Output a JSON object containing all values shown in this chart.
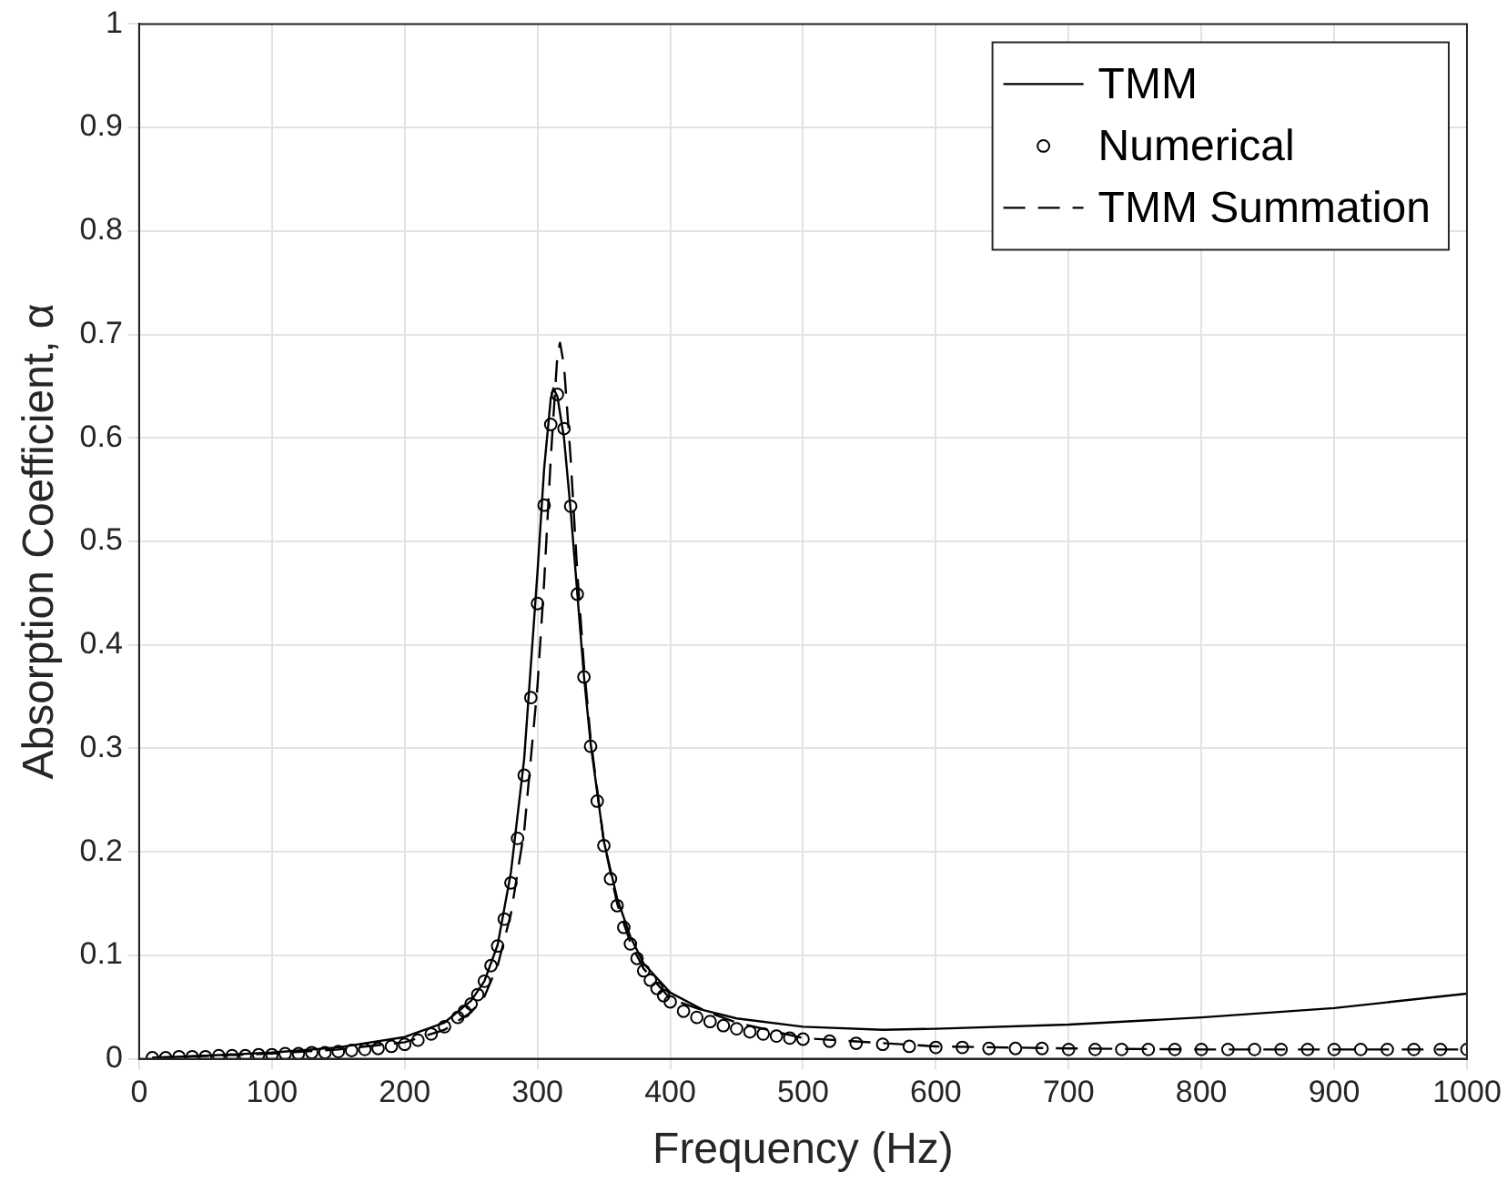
{
  "chart_data": {
    "type": "line",
    "xlabel": "Frequency (Hz)",
    "ylabel": "Absorption Coefficient, α",
    "xlim": [
      0,
      1000
    ],
    "xticks": [
      0,
      100,
      200,
      300,
      400,
      500,
      600,
      700,
      800,
      900,
      1000
    ],
    "ylim": [
      0,
      1
    ],
    "yticks": [
      0,
      0.1,
      0.2,
      0.3,
      0.4,
      0.5,
      0.6,
      0.7,
      0.8,
      0.9,
      1
    ],
    "grid": true,
    "legend": "top right",
    "series": [
      {
        "name": "TMM",
        "type": "line",
        "color": "#000000",
        "line_style": "solid",
        "marker": "none",
        "x": [
          10,
          50,
          100,
          150,
          200,
          230,
          250,
          260,
          270,
          280,
          290,
          300,
          305,
          310,
          312,
          315,
          320,
          325,
          330,
          335,
          340,
          350,
          360,
          370,
          380,
          400,
          425,
          450,
          500,
          560,
          600,
          700,
          800,
          900,
          1000
        ],
        "values": [
          0.001,
          0.003,
          0.006,
          0.011,
          0.021,
          0.035,
          0.056,
          0.075,
          0.11,
          0.18,
          0.29,
          0.47,
          0.57,
          0.638,
          0.648,
          0.64,
          0.6,
          0.53,
          0.45,
          0.37,
          0.305,
          0.21,
          0.155,
          0.118,
          0.092,
          0.064,
          0.047,
          0.039,
          0.031,
          0.028,
          0.029,
          0.033,
          0.04,
          0.049,
          0.063
        ]
      },
      {
        "name": "Numerical",
        "type": "scatter",
        "color": "#000000",
        "marker": "circle",
        "x": [
          10,
          20,
          30,
          40,
          50,
          60,
          70,
          80,
          90,
          100,
          110,
          120,
          130,
          140,
          150,
          160,
          170,
          180,
          190,
          200,
          210,
          220,
          230,
          240,
          245,
          250,
          255,
          260,
          265,
          270,
          275,
          280,
          285,
          290,
          295,
          300,
          305,
          310,
          315,
          320,
          325,
          330,
          335,
          340,
          345,
          350,
          355,
          360,
          365,
          370,
          375,
          380,
          385,
          390,
          395,
          400,
          410,
          420,
          430,
          440,
          450,
          460,
          470,
          480,
          490,
          500,
          520,
          540,
          560,
          580,
          600,
          620,
          640,
          660,
          680,
          700,
          720,
          740,
          760,
          780,
          800,
          820,
          840,
          860,
          880,
          900,
          920,
          940,
          960,
          980,
          1000
        ],
        "values": [
          0.001,
          0.001,
          0.002,
          0.002,
          0.002,
          0.003,
          0.003,
          0.003,
          0.004,
          0.004,
          0.005,
          0.005,
          0.006,
          0.006,
          0.007,
          0.008,
          0.009,
          0.01,
          0.012,
          0.014,
          0.018,
          0.024,
          0.031,
          0.04,
          0.046,
          0.053,
          0.062,
          0.075,
          0.09,
          0.109,
          0.135,
          0.17,
          0.213,
          0.274,
          0.349,
          0.44,
          0.535,
          0.613,
          0.642,
          0.609,
          0.534,
          0.449,
          0.369,
          0.302,
          0.249,
          0.206,
          0.174,
          0.148,
          0.127,
          0.111,
          0.097,
          0.085,
          0.076,
          0.068,
          0.061,
          0.055,
          0.046,
          0.04,
          0.036,
          0.032,
          0.029,
          0.026,
          0.024,
          0.022,
          0.02,
          0.019,
          0.017,
          0.015,
          0.014,
          0.012,
          0.011,
          0.011,
          0.01,
          0.01,
          0.01,
          0.009,
          0.009,
          0.009,
          0.009,
          0.009,
          0.009,
          0.009,
          0.009,
          0.009,
          0.009,
          0.009,
          0.009,
          0.009,
          0.009,
          0.009,
          0.009
        ]
      },
      {
        "name": "TMM Summation",
        "type": "line",
        "color": "#000000",
        "line_style": "dashed",
        "marker": "none",
        "x": [
          10,
          100,
          150,
          200,
          230,
          250,
          260,
          270,
          280,
          290,
          300,
          305,
          310,
          315,
          317,
          320,
          325,
          330,
          335,
          340,
          350,
          360,
          370,
          380,
          400,
          450,
          500,
          600,
          700,
          800,
          1000
        ],
        "values": [
          0.001,
          0.005,
          0.009,
          0.016,
          0.028,
          0.045,
          0.06,
          0.09,
          0.14,
          0.22,
          0.36,
          0.46,
          0.58,
          0.68,
          0.692,
          0.67,
          0.58,
          0.47,
          0.38,
          0.31,
          0.21,
          0.15,
          0.112,
          0.087,
          0.058,
          0.035,
          0.02,
          0.012,
          0.01,
          0.009,
          0.009
        ]
      }
    ]
  }
}
